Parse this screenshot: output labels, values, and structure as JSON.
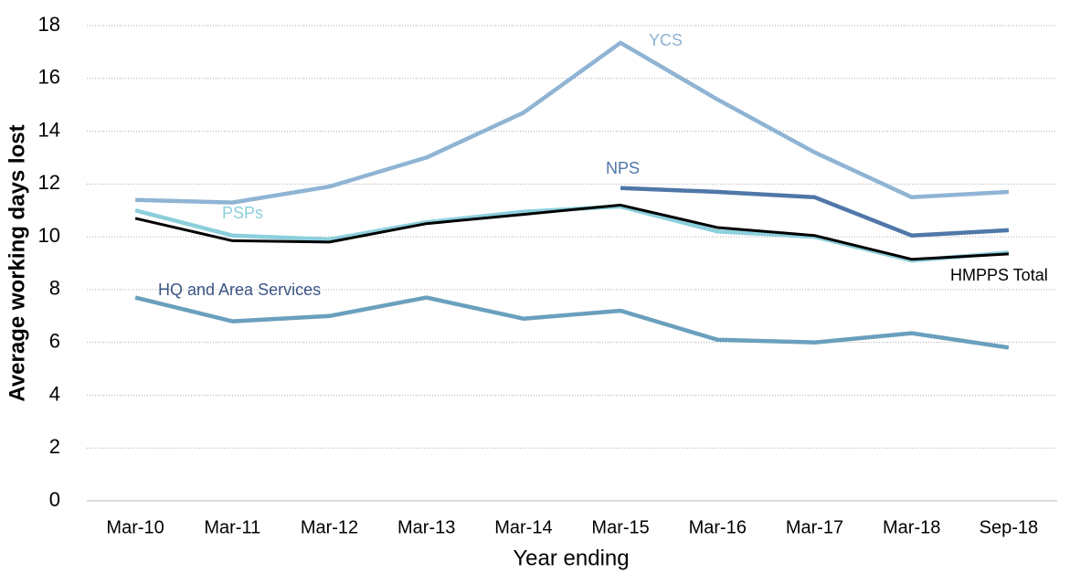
{
  "chart_data": {
    "type": "line",
    "x_label": "Year ending",
    "y_label": "Average working days lost",
    "categories": [
      "Mar-10",
      "Mar-11",
      "Mar-12",
      "Mar-13",
      "Mar-14",
      "Mar-15",
      "Mar-16",
      "Mar-17",
      "Mar-18",
      "Sep-18"
    ],
    "series": [
      {
        "name": "YCS",
        "color": "#8fb4d4",
        "values": [
          11.4,
          11.3,
          11.9,
          13.0,
          14.7,
          17.35,
          15.2,
          13.2,
          11.5,
          11.7
        ]
      },
      {
        "name": "NPS",
        "color": "#4f77a8",
        "values": [
          null,
          null,
          null,
          null,
          null,
          11.85,
          11.7,
          11.5,
          10.05,
          10.25
        ]
      },
      {
        "name": "PSPs",
        "color": "#8ccfdc",
        "values": [
          11.0,
          10.05,
          9.9,
          10.55,
          10.95,
          11.15,
          10.2,
          10.0,
          9.1,
          9.4
        ]
      },
      {
        "name": "HMPPS Total",
        "color": "#000000",
        "values": [
          10.7,
          9.85,
          9.8,
          10.5,
          10.85,
          11.2,
          10.35,
          10.05,
          9.15,
          9.35
        ]
      },
      {
        "name": "HQ and Area Services",
        "color": "#6a9fbd",
        "values": [
          7.7,
          6.8,
          7.0,
          7.7,
          6.9,
          7.2,
          6.1,
          6.0,
          6.35,
          5.8
        ]
      }
    ],
    "ylim": [
      0,
      18
    ],
    "yticks": [
      0,
      2,
      4,
      6,
      8,
      10,
      12,
      14,
      16,
      18
    ],
    "grid": true
  }
}
